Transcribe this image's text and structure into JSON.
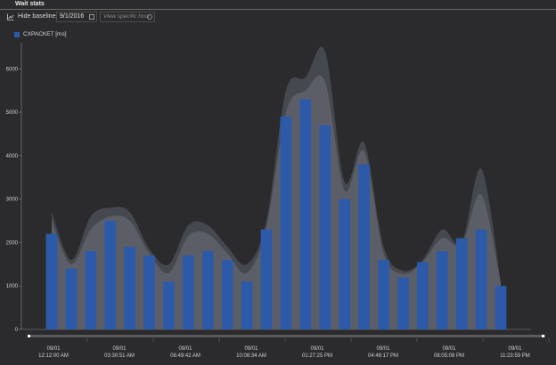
{
  "panel": {
    "title": "Wait stats"
  },
  "toolbar": {
    "hide_baselines_label": "Hide baselines",
    "date_value": "9/1/2016",
    "hour_placeholder": "View specific hour"
  },
  "colors": {
    "bar": "#2d5aa8",
    "baseline_fill": "#5d6068",
    "baseline_outer": "#474a50"
  },
  "chart_data": {
    "type": "bar",
    "ylim": [
      0,
      6600
    ],
    "yticks": [
      0,
      1000,
      2000,
      3000,
      4000,
      5000,
      6000
    ],
    "series": [
      {
        "name": "CXPACKET [ms]",
        "values": [
          2200,
          1400,
          1800,
          2500,
          1900,
          1700,
          1100,
          1700,
          1800,
          1600,
          1100,
          2300,
          4900,
          5300,
          4700,
          3000,
          3800,
          1600,
          1200,
          1550,
          1800,
          2100,
          2300,
          1000
        ]
      }
    ],
    "baseline_upper": [
      2700,
      1600,
      2600,
      2800,
      2700,
      1850,
      1500,
      2400,
      2400,
      1900,
      1500,
      2500,
      5500,
      5800,
      6400,
      3400,
      4300,
      1900,
      1350,
      1600,
      2300,
      2000,
      3700,
      1100
    ],
    "baseline_lower": [
      2500,
      1500,
      2300,
      2600,
      2500,
      1750,
      1300,
      2150,
      2200,
      1750,
      1300,
      2350,
      5000,
      5500,
      5700,
      3200,
      4100,
      1750,
      1280,
      1550,
      2100,
      1950,
      3100,
      1050
    ],
    "x_tick_labels": [
      {
        "line1": "09/01",
        "line2": "12:12:00 AM"
      },
      {
        "line1": "09/01",
        "line2": "03:30:51 AM"
      },
      {
        "line1": "09/01",
        "line2": "06:49:42 AM"
      },
      {
        "line1": "09/01",
        "line2": "10:08:34 AM"
      },
      {
        "line1": "09/01",
        "line2": "01:27:25 PM"
      },
      {
        "line1": "09/01",
        "line2": "04:46:17 PM"
      },
      {
        "line1": "09/01",
        "line2": "08:05:08 PM"
      },
      {
        "line1": "09/01",
        "line2": "11:23:59 PM"
      }
    ]
  }
}
